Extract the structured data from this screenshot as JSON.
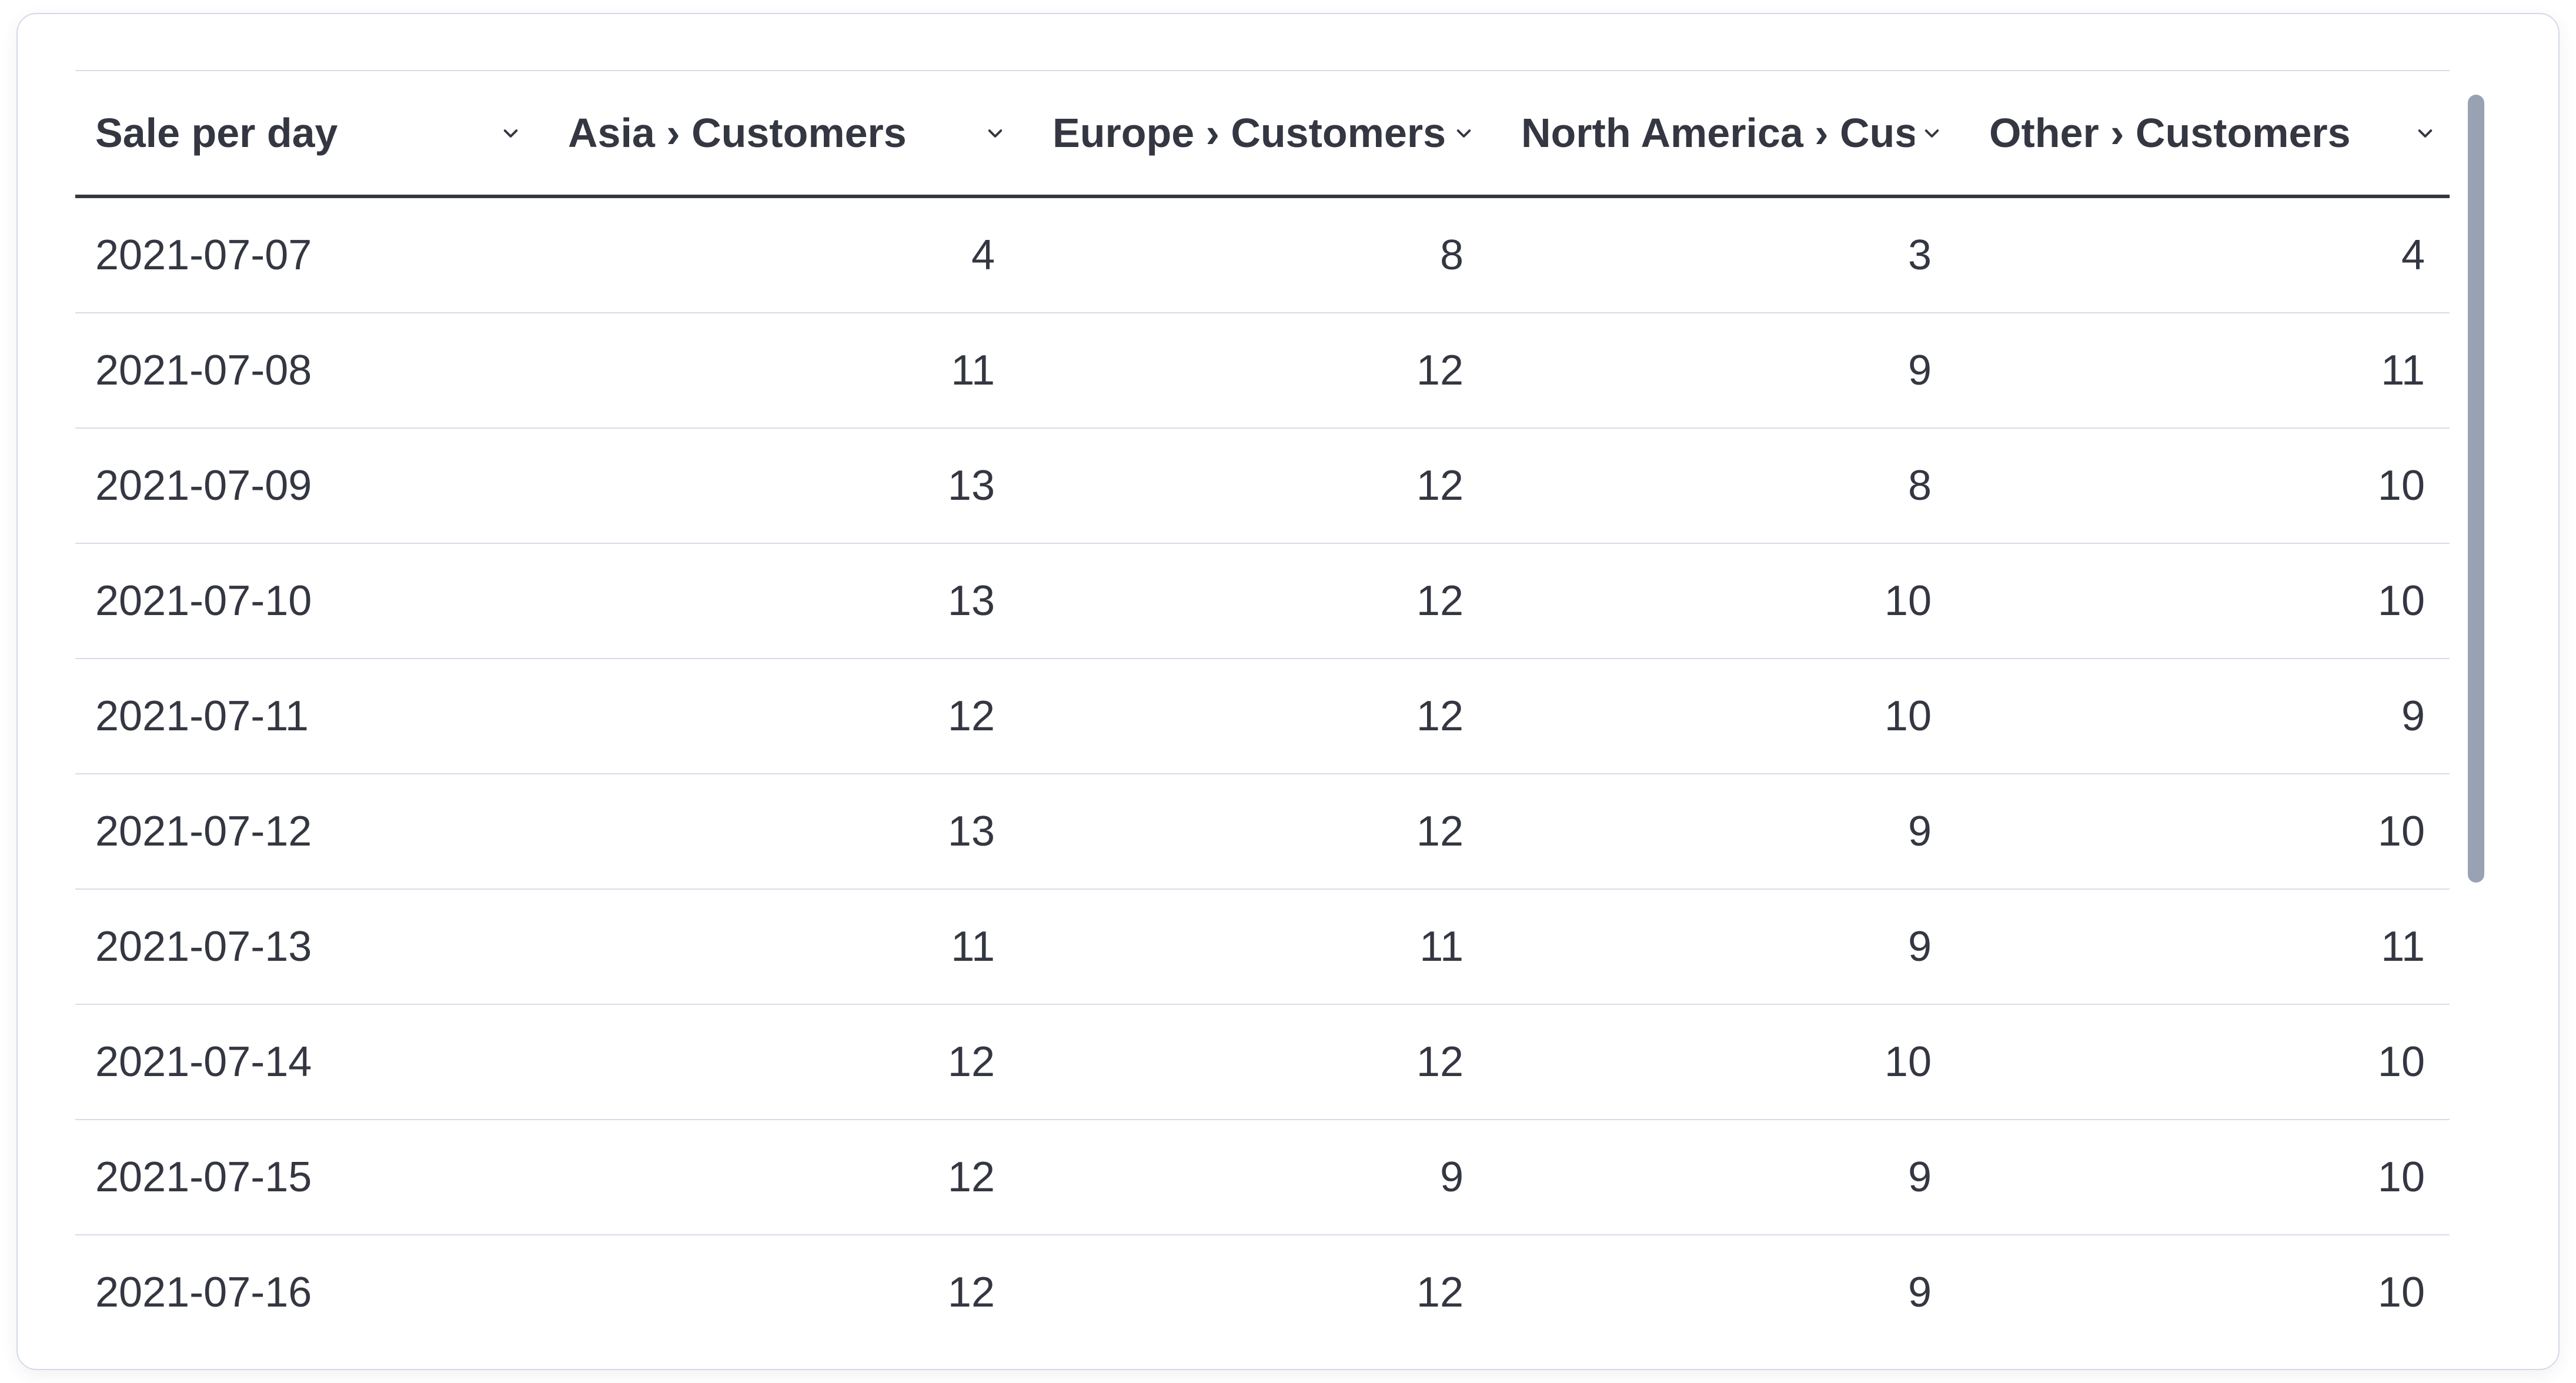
{
  "chart_data": {
    "type": "table",
    "title": "Sale per day",
    "columns": [
      {
        "label": "Sale per day",
        "align": "left"
      },
      {
        "label": "Asia › Customers",
        "align": "right"
      },
      {
        "label": "Europe › Customers",
        "align": "right"
      },
      {
        "label": "North America › Customers",
        "align": "right"
      },
      {
        "label": "Other › Customers",
        "align": "right"
      }
    ],
    "rows": [
      [
        "2021-07-07",
        4,
        8,
        3,
        4
      ],
      [
        "2021-07-08",
        11,
        12,
        9,
        11
      ],
      [
        "2021-07-09",
        13,
        12,
        8,
        10
      ],
      [
        "2021-07-10",
        13,
        12,
        10,
        10
      ],
      [
        "2021-07-11",
        12,
        12,
        10,
        9
      ],
      [
        "2021-07-12",
        13,
        12,
        9,
        10
      ],
      [
        "2021-07-13",
        11,
        11,
        9,
        11
      ],
      [
        "2021-07-14",
        12,
        12,
        10,
        10
      ],
      [
        "2021-07-15",
        12,
        9,
        9,
        10
      ],
      [
        "2021-07-16",
        12,
        12,
        9,
        10
      ]
    ],
    "layout": {
      "grid": "horizontal-rules-only",
      "header_sortable": true,
      "scrollbar_visible": true
    }
  },
  "icons": {
    "column_menu": {
      "name": "chevron-down-icon",
      "glyph": "⌄"
    }
  },
  "colors": {
    "text": "#343741",
    "header_rule": "#343741",
    "row_border": "#d7dde6",
    "panel_border": "#d3dae6",
    "scrollbar_thumb": "#98a2b3",
    "background": "#ffffff"
  }
}
